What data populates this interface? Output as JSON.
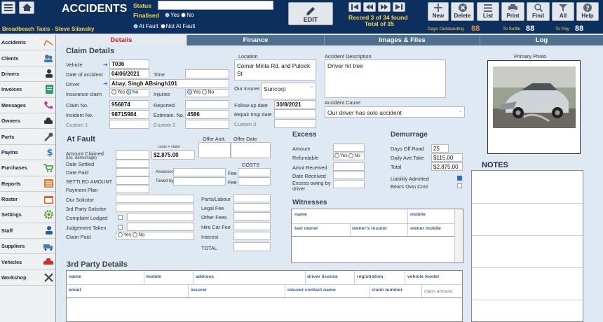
{
  "header": {
    "title": "ACCIDENTS",
    "status_label": "Status",
    "status_value": "",
    "finalised_label": "Finalised",
    "yes": "Yes",
    "no": "No",
    "at_fault": "At Fault",
    "not_at_fault": "Not At Fault",
    "edit": "EDIT",
    "record": "Record 3 of 34 found",
    "total": "Total of 35",
    "company": "Broadbeach Taxis - Steve Silansky",
    "days_outstanding_label": "Days  Outstanding",
    "days_outstanding": "88",
    "to_settle_label": "To Settle",
    "to_settle": "88",
    "to_pay_label": "To Pay",
    "to_pay": "88",
    "buttons": [
      {
        "label": "New",
        "icon": "plus-icon"
      },
      {
        "label": "Delete",
        "icon": "x-icon"
      },
      {
        "label": "List",
        "icon": "list-icon"
      },
      {
        "label": "Print",
        "icon": "print-icon"
      },
      {
        "label": "Find",
        "icon": "search-icon"
      },
      {
        "label": "All",
        "icon": "filter-icon"
      },
      {
        "label": "Help",
        "icon": "help-icon"
      }
    ]
  },
  "sidebar": [
    "Accidents",
    "Clients",
    "Drivers",
    "Invoices",
    "Messages",
    "Owners",
    "Parts",
    "Payins",
    "Purchases",
    "Reports",
    "Roster",
    "Settings",
    "Staff",
    "Suppliers",
    "Vehicles",
    "Workshop"
  ],
  "tabs": [
    "Details",
    "Finance",
    "Images & Files",
    "Log"
  ],
  "claim": {
    "title": "Claim Details",
    "vehicle_l": "Vehicle",
    "vehicle": "T036",
    "date_l": "Date of accident",
    "date": "04/06/2021",
    "time_l": "Time",
    "driver_l": "Driver",
    "driver": "Abay, Singh ABsingh101",
    "ins_l": "Insurance claim",
    "injuries_l": "Injuries",
    "claimno_l": "Claim No.",
    "claimno": "956874",
    "reported_l": "Reported",
    "incident_l": "Incident No.",
    "incident": "98715984",
    "estimate_l": "Estimate. No.",
    "estimate": "4586",
    "c1": "Custom 1",
    "c2": "Custom 2",
    "yes": "Yes",
    "no": "No"
  },
  "loc": {
    "label": "Location",
    "value": "Corner Minta Rd. and Pulcick St",
    "insurer_l": "Our insurer",
    "insurer": "Suncorp",
    "followup_l": "Follow-up date",
    "followup": "30/8/2021",
    "repair_l": "Repair Insp.date",
    "c3": "Custom 3"
  },
  "desc": {
    "label": "Accident Description",
    "value": "Driver hit tree",
    "cause_l": "Accident Cause",
    "cause": "Our driver has solo accident"
  },
  "photo": {
    "label": "Primary Photo"
  },
  "fault": {
    "title": "At Fault",
    "amount_l": "Amount Claimed",
    "amount_sub": "(inc. demurrage)",
    "costs_claim": "costs + claim",
    "costs_value": "$2,875.00",
    "settled_l": "Date Settled",
    "paid_l": "Date Paid",
    "settled_amt_l": "SETTLED AMOUNT",
    "plan_l": "Payment Plan",
    "solicitor_l": "Our Solicitor",
    "tp_solicitor_l": "3rd Party Solicitor",
    "complaint_l": "Complaint Lodged",
    "judgement_l": "Judgement  Taken",
    "claim_paid_l": "Claim Paid",
    "offer_amt_l": "Offer Amt.",
    "offer_date_l": "Offer Date",
    "assessor_l": "Assessor",
    "towed_l": "Towed by",
    "fee_l": "Fee",
    "costs_l": "COSTS",
    "parts_l": "Parts/Labour",
    "legal_l": "Legal Fee",
    "other_l": "Other Fees",
    "hire_l": "Hire Car Fee",
    "interest_l": "Interest",
    "total_l": "TOTAL",
    "yes": "Yes",
    "no": "No"
  },
  "excess": {
    "title": "Excess",
    "amount_l": "Amount",
    "refundable_l": "Refundable",
    "received_l": "Amnt Received",
    "date_rec_l": "Date Received",
    "owing_l": "Excess owing by driver",
    "yes": "Yes",
    "no": "No"
  },
  "demurrage": {
    "title": "Demurrage",
    "days_l": "Days Off Road",
    "days": "25",
    "daily_l": "Daily Ave.Take",
    "daily": "$115.00",
    "total_l": "Total",
    "total": "$2,875.00",
    "liability_l": "Liability Admitted",
    "bears_l": "Bears Own Cost"
  },
  "notes": {
    "title": "NOTES"
  },
  "witnesses": {
    "title": "Witnesses",
    "cols1": [
      "name",
      "mobile"
    ],
    "cols2": [
      "taxi owner",
      "owner's insurer",
      "owner mobile"
    ]
  },
  "third": {
    "title": "3rd Party Details",
    "cols1": [
      "name",
      "mobile",
      "address",
      "driver license",
      "registration",
      "vehicle model"
    ],
    "cols2": [
      "email",
      "insurer",
      "insurer contact name",
      "claim number",
      "claim amount"
    ]
  }
}
